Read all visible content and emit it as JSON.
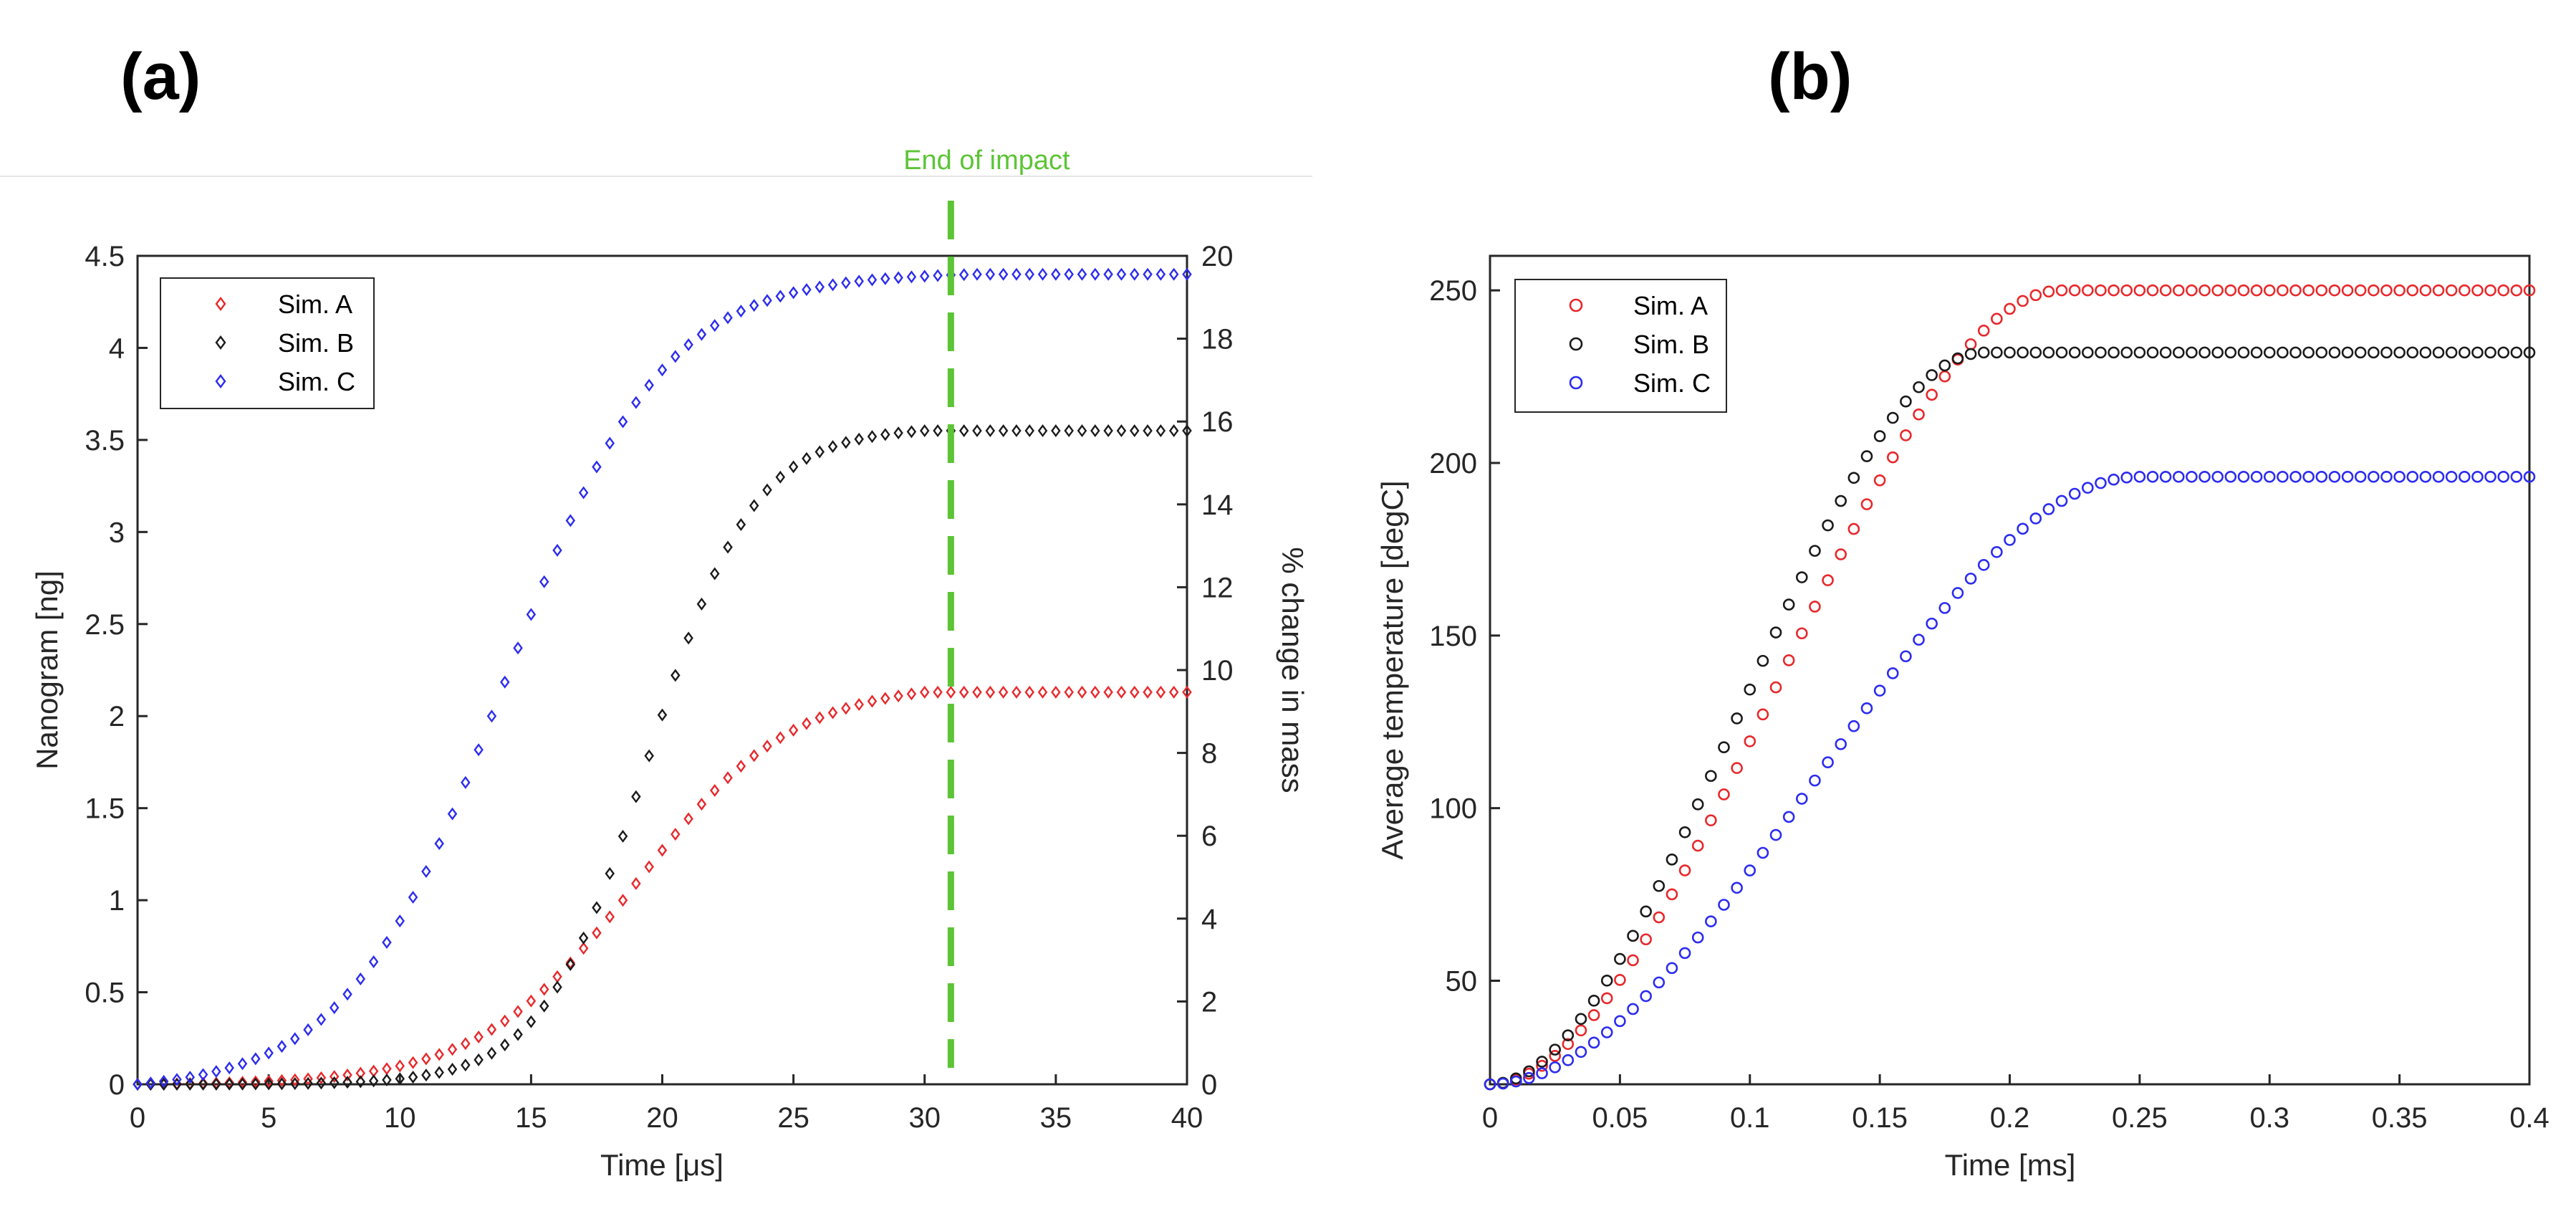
{
  "colors": {
    "sim_a": "#e8282b",
    "sim_b": "#1a1a1a",
    "sim_c": "#2c2cf0",
    "end_line": "#5cc436",
    "axis": "#262626"
  },
  "chart_data": [
    {
      "id": "a",
      "panel_label": "(a)",
      "type": "scatter",
      "marker": "diamond",
      "xlabel": "Time [μs]",
      "ylabel": "Nanogram [ng]",
      "y2label": "% change in mass",
      "xlim": [
        0,
        40
      ],
      "ylim": [
        0,
        4.5
      ],
      "y2lim": [
        0,
        20
      ],
      "xticks": [
        "0",
        "5",
        "10",
        "15",
        "20",
        "25",
        "30",
        "35",
        "40"
      ],
      "yticks": [
        "0",
        "0.5",
        "1",
        "1.5",
        "2",
        "2.5",
        "3",
        "3.5",
        "4",
        "4.5"
      ],
      "y2ticks": [
        "0",
        "2",
        "4",
        "6",
        "8",
        "10",
        "12",
        "14",
        "16",
        "18",
        "20"
      ],
      "legend": [
        "Sim. A",
        "Sim. B",
        "Sim. C"
      ],
      "legend_location": "top-left",
      "annotation": {
        "text": "End of impact",
        "x": 31
      },
      "series": [
        {
          "name": "Sim. A",
          "model": "logistic",
          "x_range": [
            0,
            40
          ],
          "x_step": 0.5,
          "final": 2.13,
          "midpoint": 19.0,
          "scale": 3.0,
          "saturation": 30.0
        },
        {
          "name": "Sim. B",
          "model": "logistic",
          "x_range": [
            0,
            40
          ],
          "x_step": 0.5,
          "final": 3.55,
          "midpoint": 19.5,
          "scale": 2.0,
          "saturation": 30.0
        },
        {
          "name": "Sim. C",
          "model": "logistic",
          "x_range": [
            0,
            40
          ],
          "x_step": 0.5,
          "final": 4.4,
          "midpoint": 14.0,
          "scale": 3.0,
          "saturation": 32.0
        }
      ]
    },
    {
      "id": "b",
      "panel_label": "(b)",
      "type": "scatter",
      "marker": "circle",
      "xlabel": "Time [ms]",
      "ylabel": "Average temperature [degC]",
      "xlim": [
        0,
        0.4
      ],
      "ylim": [
        20,
        260
      ],
      "xticks": [
        "0",
        "0.05",
        "0.1",
        "0.15",
        "0.2",
        "0.25",
        "0.3",
        "0.35",
        "0.4"
      ],
      "yticks": [
        "50",
        "100",
        "150",
        "200",
        "250"
      ],
      "legend": [
        "Sim. A",
        "Sim. B",
        "Sim. C"
      ],
      "legend_location": "top-left",
      "series": [
        {
          "name": "Sim. A",
          "model": "smoothstep",
          "x_range": [
            0,
            0.4
          ],
          "x_step": 0.005,
          "start": 20,
          "final": 250,
          "t_end": 0.22
        },
        {
          "name": "Sim. B",
          "model": "smoothstep",
          "x_range": [
            0,
            0.4
          ],
          "x_step": 0.005,
          "start": 20,
          "final": 232,
          "t_end": 0.19
        },
        {
          "name": "Sim. C",
          "model": "smoothstep",
          "x_range": [
            0,
            0.4
          ],
          "x_step": 0.005,
          "start": 20,
          "final": 196,
          "t_end": 0.25
        }
      ]
    }
  ]
}
